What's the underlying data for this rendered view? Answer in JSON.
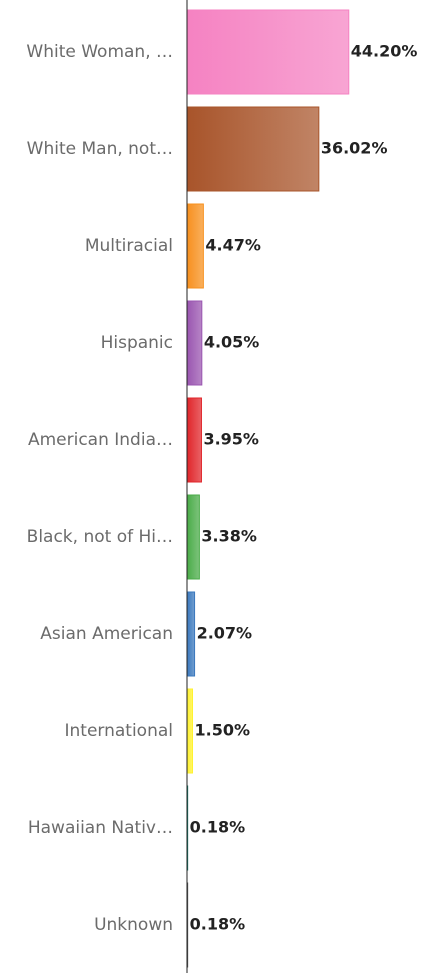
{
  "chart_data": {
    "type": "bar",
    "orientation": "horizontal",
    "categories": [
      "White Woman, …",
      "White Man, not…",
      "Multiracial",
      "Hispanic",
      "American India…",
      "Black, not of Hi…",
      "Asian American",
      "International",
      "Hawaiian Nativ…",
      "Unknown"
    ],
    "values": [
      44.2,
      36.02,
      4.47,
      4.05,
      3.95,
      3.38,
      2.07,
      1.5,
      0.18,
      0.18
    ],
    "value_labels": [
      "44.20%",
      "36.02%",
      "4.47%",
      "4.05%",
      "3.95%",
      "3.38%",
      "2.07%",
      "1.50%",
      "0.18%",
      "0.18%"
    ],
    "colors": [
      "#f582c2",
      "#a8542a",
      "#f7901e",
      "#9a55b0",
      "#e0252a",
      "#4aab48",
      "#3a78bd",
      "#fff22e",
      "#16796b",
      "#555555"
    ],
    "xlim": [
      0,
      50
    ]
  }
}
